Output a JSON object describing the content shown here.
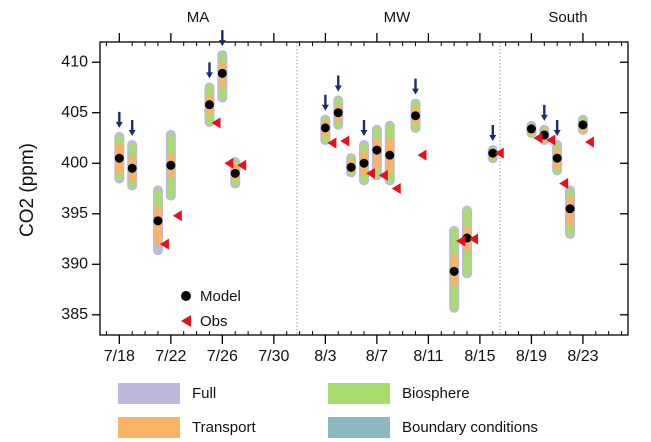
{
  "chart_data": {
    "type": "range-dot",
    "y_label": "CO2 (ppm)",
    "regions": [
      "MA",
      "MW",
      "South"
    ],
    "categories": [
      null,
      "7/18",
      null,
      null,
      null,
      "7/22",
      null,
      null,
      null,
      "7/26",
      null,
      null,
      null,
      "7/30",
      null,
      null,
      null,
      "8/3",
      null,
      null,
      null,
      "8/7",
      null,
      null,
      null,
      "8/11",
      null,
      null,
      null,
      "8/15",
      null,
      null,
      null,
      "8/19",
      null,
      null,
      null,
      "8/23",
      null,
      null,
      null
    ],
    "ylim": [
      383,
      412
    ],
    "yticks": [
      385,
      390,
      395,
      400,
      405,
      410
    ],
    "series": [
      {
        "name": "Full",
        "mark": "range",
        "color": "#bcb8de",
        "values": [
          null,
          [
            398.0,
            403.1
          ],
          [
            397.3,
            402.3
          ],
          null,
          [
            390.9,
            397.8
          ],
          [
            396.3,
            403.3
          ],
          null,
          null,
          [
            403.6,
            408.0
          ],
          [
            406.0,
            411.2
          ],
          [
            397.5,
            400.6
          ],
          null,
          null,
          null,
          null,
          null,
          null,
          [
            401.8,
            404.8
          ],
          [
            403.3,
            406.7
          ],
          [
            398.6,
            401.0
          ],
          [
            397.8,
            402.3
          ],
          [
            398.3,
            403.8
          ],
          [
            397.8,
            404.2
          ],
          null,
          [
            403.0,
            406.4
          ],
          null,
          null,
          [
            385.2,
            393.8
          ],
          [
            388.6,
            395.8
          ],
          null,
          [
            400.0,
            401.8
          ],
          null,
          null,
          [
            402.5,
            404.2
          ],
          [
            401.8,
            403.8
          ],
          [
            398.8,
            402.3
          ],
          [
            392.5,
            397.8
          ],
          [
            402.8,
            404.8
          ],
          null,
          null,
          null
        ]
      },
      {
        "name": "Biosphere",
        "mark": "range",
        "color": "#a8dc6c",
        "values": [
          null,
          [
            398.3,
            402.8
          ],
          [
            397.6,
            402.0
          ],
          null,
          [
            392.5,
            397.5
          ],
          [
            396.5,
            403.0
          ],
          null,
          null,
          [
            403.8,
            407.8
          ],
          [
            406.3,
            411.0
          ],
          [
            397.8,
            400.3
          ],
          null,
          null,
          null,
          null,
          null,
          null,
          [
            402.0,
            404.6
          ],
          [
            403.5,
            406.5
          ],
          [
            398.8,
            400.8
          ],
          [
            398.0,
            402.0
          ],
          [
            398.5,
            403.6
          ],
          [
            398.0,
            404.0
          ],
          null,
          [
            403.2,
            406.2
          ],
          null,
          null,
          [
            385.4,
            393.6
          ],
          [
            388.8,
            395.6
          ],
          null,
          [
            400.2,
            401.6
          ],
          null,
          null,
          [
            402.6,
            404.0
          ],
          [
            402.0,
            403.6
          ],
          [
            399.0,
            402.0
          ],
          [
            392.8,
            397.5
          ],
          [
            402.9,
            404.6
          ],
          null,
          null,
          null
        ]
      },
      {
        "name": "Transport",
        "mark": "range",
        "color": "#f8b464",
        "values": [
          null,
          [
            399.0,
            402.0
          ],
          [
            398.2,
            400.8
          ],
          null,
          [
            391.8,
            395.8
          ],
          [
            398.5,
            401.0
          ],
          null,
          null,
          [
            404.8,
            406.8
          ],
          [
            407.5,
            410.0
          ],
          [
            398.3,
            400.0
          ],
          null,
          null,
          null,
          null,
          null,
          null,
          [
            402.5,
            404.3
          ],
          [
            404.0,
            405.8
          ],
          [
            399.0,
            400.4
          ],
          [
            398.8,
            401.2
          ],
          [
            399.5,
            402.5
          ],
          [
            399.0,
            402.5
          ],
          null,
          [
            403.8,
            405.6
          ],
          null,
          null,
          [
            387.8,
            391.0
          ],
          [
            391.3,
            393.8
          ],
          null,
          [
            400.4,
            401.5
          ],
          null,
          null,
          [
            402.8,
            403.9
          ],
          [
            402.0,
            403.4
          ],
          [
            399.4,
            401.5
          ],
          [
            393.8,
            396.8
          ],
          [
            403.0,
            404.2
          ],
          null,
          null,
          null
        ]
      },
      {
        "name": "Boundary conditions",
        "mark": "range",
        "color": "#8cb8c0",
        "values": [
          null,
          [
            400.2,
            400.8
          ],
          [
            399.2,
            399.8
          ],
          null,
          [
            394.0,
            394.6
          ],
          [
            399.5,
            400.1
          ],
          null,
          null,
          [
            405.5,
            406.1
          ],
          [
            408.6,
            409.2
          ],
          [
            398.7,
            399.3
          ],
          null,
          null,
          null,
          null,
          null,
          null,
          [
            403.2,
            403.8
          ],
          [
            404.7,
            405.3
          ],
          [
            399.3,
            399.9
          ],
          [
            399.7,
            400.3
          ],
          [
            401.0,
            401.6
          ],
          [
            400.5,
            401.1
          ],
          null,
          [
            404.4,
            405.0
          ],
          null,
          null,
          [
            389.0,
            389.6
          ],
          [
            392.3,
            392.9
          ],
          null,
          [
            400.7,
            401.3
          ],
          null,
          null,
          [
            403.1,
            403.7
          ],
          [
            402.5,
            403.1
          ],
          [
            400.2,
            400.8
          ],
          [
            395.2,
            395.8
          ],
          [
            403.5,
            404.1
          ],
          null,
          null,
          null
        ]
      },
      {
        "name": "Model",
        "mark": "dot",
        "color": "#000000",
        "values": [
          null,
          400.5,
          399.5,
          null,
          394.3,
          399.8,
          null,
          null,
          405.8,
          408.9,
          399.0,
          null,
          null,
          null,
          null,
          null,
          null,
          403.5,
          405.0,
          399.6,
          400.0,
          401.3,
          400.8,
          null,
          404.7,
          null,
          null,
          389.3,
          392.6,
          null,
          401.0,
          null,
          null,
          403.4,
          402.8,
          400.5,
          395.5,
          403.8,
          null,
          null,
          null
        ]
      },
      {
        "name": "Obs",
        "mark": "triangle",
        "color": "#e8101c",
        "values": [
          null,
          null,
          null,
          null,
          392.0,
          394.8,
          null,
          null,
          404.0,
          400.0,
          399.8,
          null,
          null,
          null,
          null,
          null,
          null,
          402.0,
          402.2,
          null,
          399.0,
          398.8,
          397.5,
          null,
          400.8,
          null,
          null,
          392.3,
          392.5,
          null,
          401.0,
          null,
          null,
          402.5,
          402.3,
          398.0,
          null,
          402.1,
          null,
          null,
          null
        ]
      }
    ],
    "arrows": [
      false,
      true,
      true,
      false,
      false,
      false,
      false,
      false,
      true,
      true,
      false,
      false,
      false,
      false,
      false,
      false,
      false,
      true,
      true,
      false,
      true,
      false,
      false,
      false,
      true,
      false,
      false,
      false,
      false,
      false,
      true,
      false,
      false,
      false,
      true,
      true,
      false,
      false,
      false,
      false,
      false
    ],
    "arrow_color": "#1c2c6c"
  }
}
